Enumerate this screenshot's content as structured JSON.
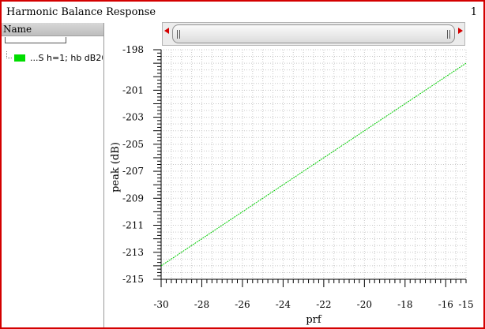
{
  "window": {
    "title": "Harmonic Balance Response",
    "page_number": "1"
  },
  "legend": {
    "header": "Name",
    "items": [
      {
        "label": "...S h=1; hb dB20(",
        "color": "#00dd00"
      }
    ]
  },
  "chart_data": {
    "type": "line",
    "title": "",
    "xlabel": "prf",
    "ylabel": "peak (dB)",
    "xlim": [
      -30,
      -15
    ],
    "ylim": [
      -215,
      -198
    ],
    "x_ticks": [
      -30,
      -28,
      -26,
      -24,
      -22,
      -20,
      -18,
      -16,
      -15
    ],
    "y_ticks": [
      -198,
      -201,
      -203,
      -205,
      -207,
      -209,
      -211,
      -213,
      -215
    ],
    "grid": true,
    "series": [
      {
        "name": "...S h=1; hb dB20(",
        "color": "#00cc00",
        "style": "dotted",
        "x": [
          -30,
          -15
        ],
        "y": [
          -214.0,
          -199.0
        ]
      }
    ]
  }
}
